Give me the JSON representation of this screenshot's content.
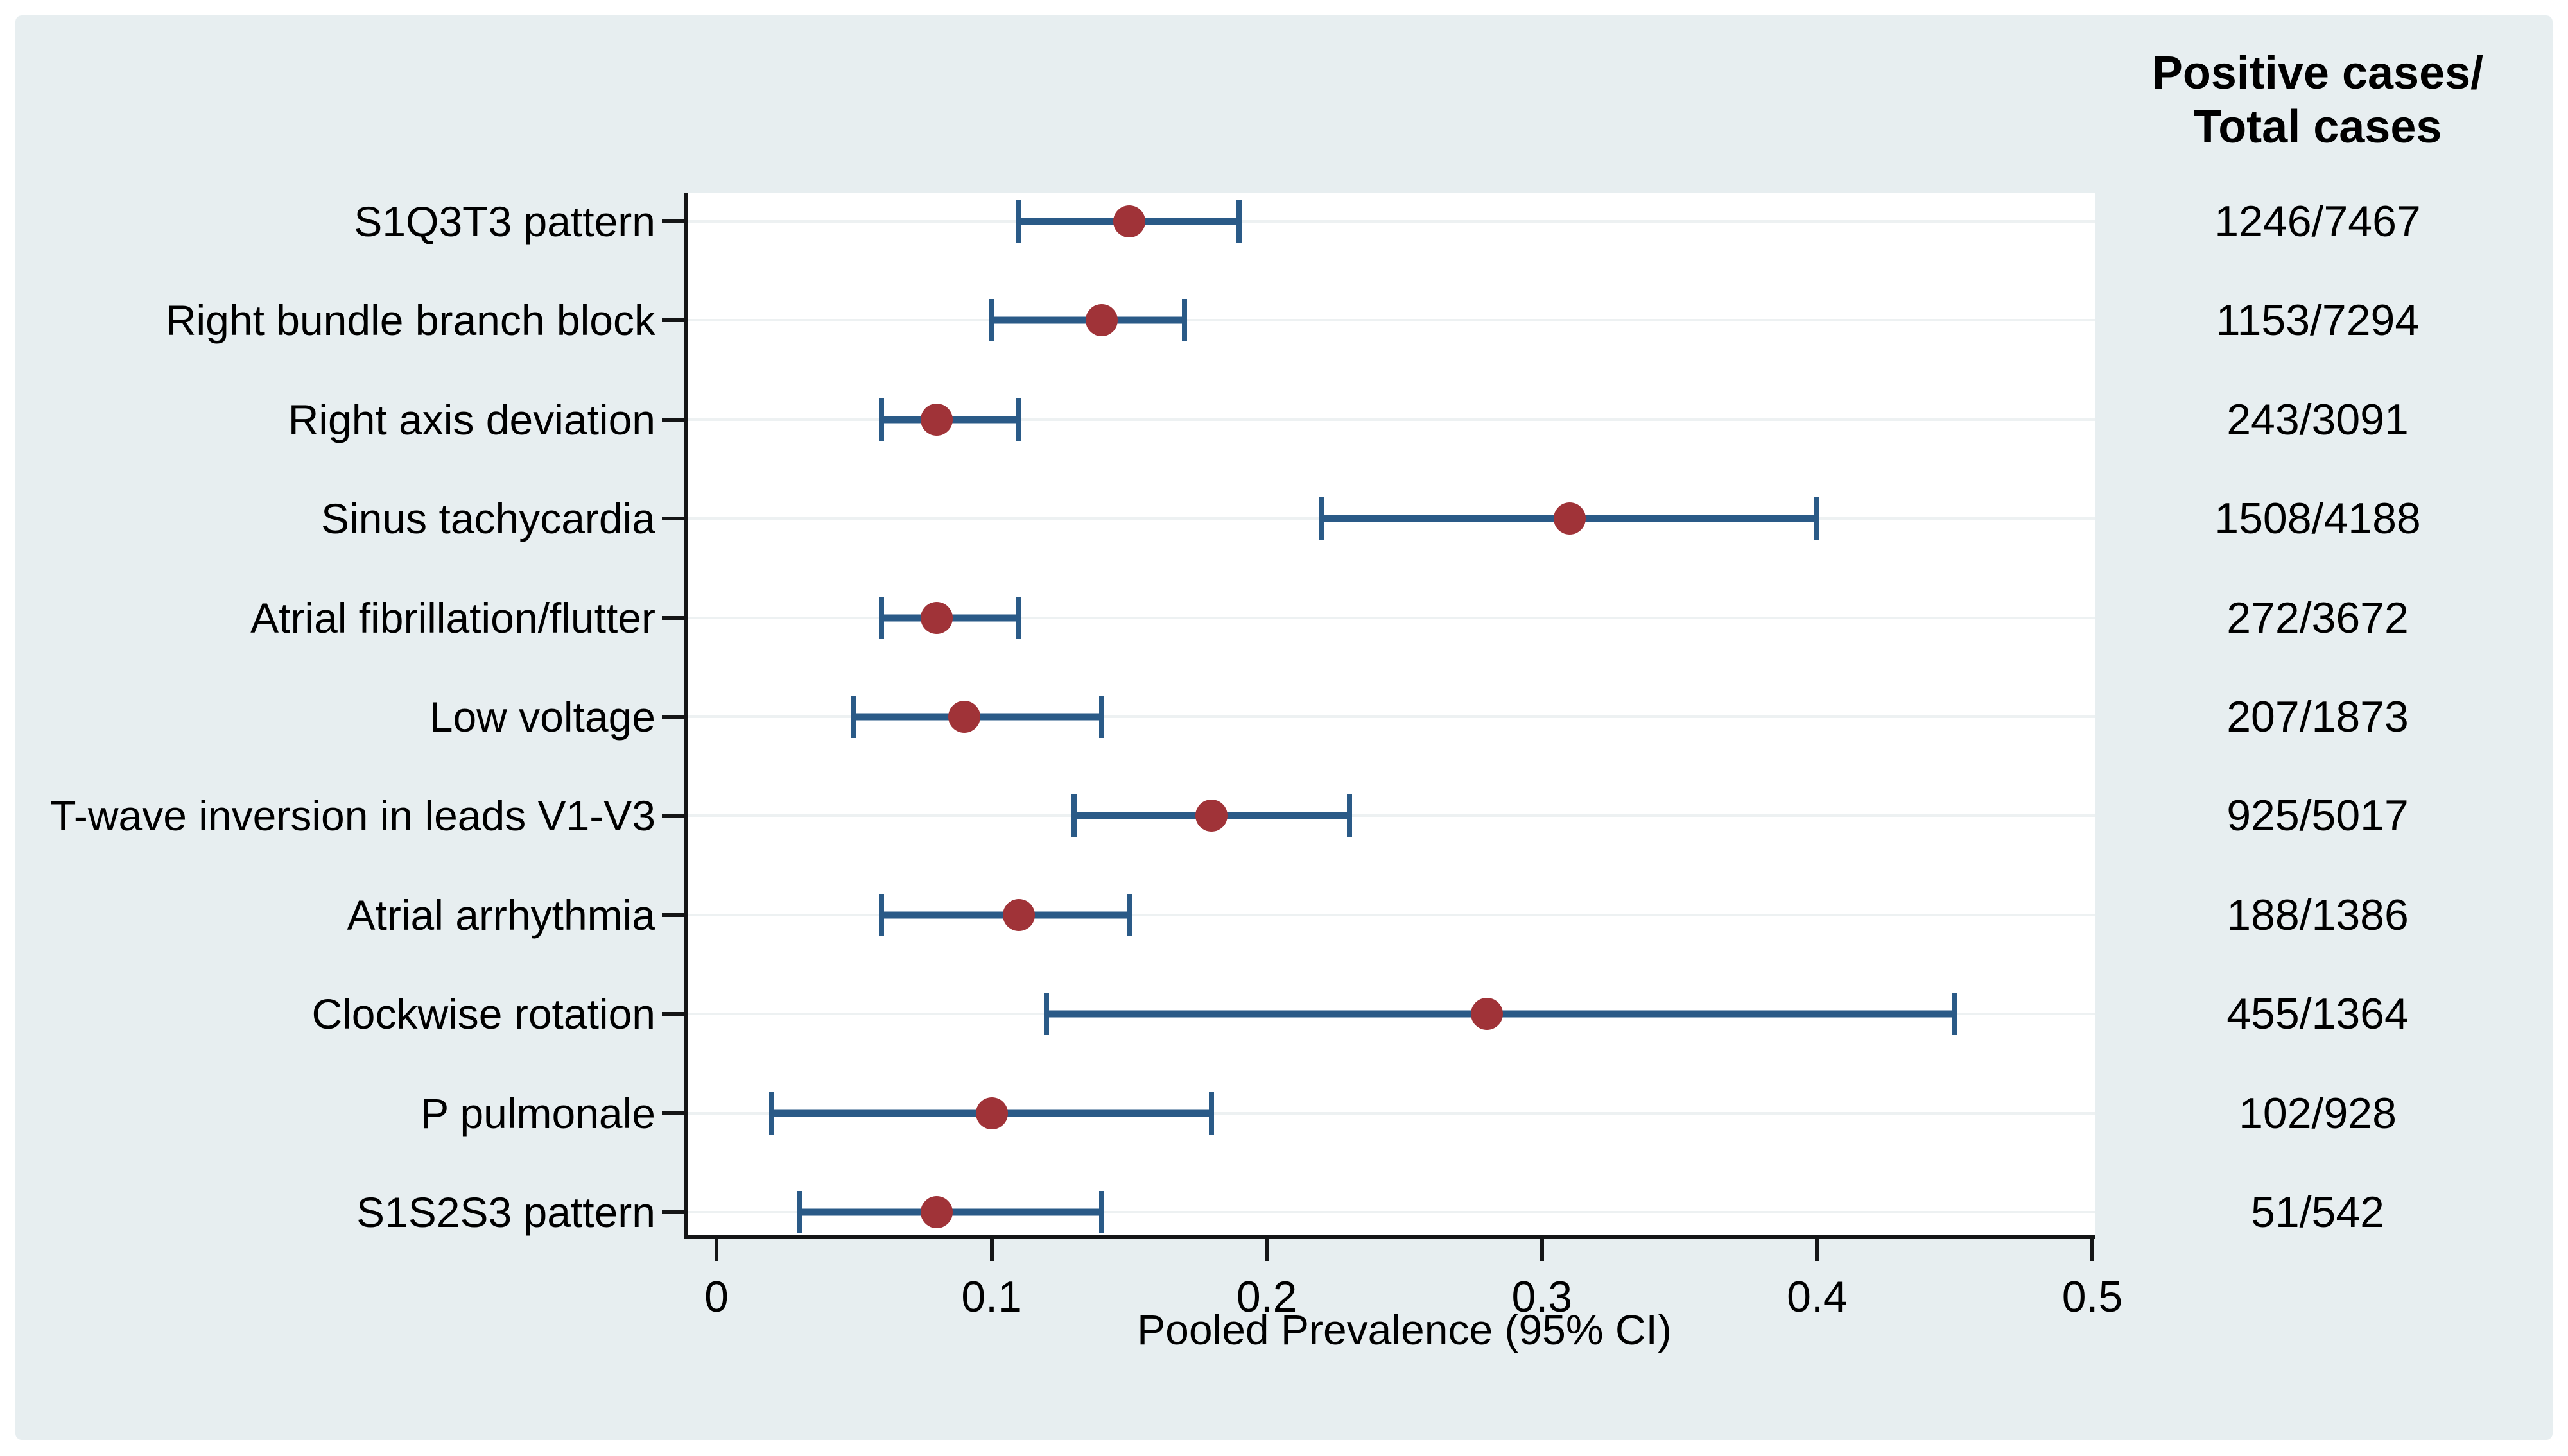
{
  "figure": {
    "right_column_header_line1": "Positive cases/",
    "right_column_header_line2": "Total cases",
    "x_axis_title": "Pooled Prevalence (95% CI)"
  },
  "chart_data": {
    "type": "scatter",
    "subtype": "forest-plot",
    "title": "",
    "xlabel": "Pooled Prevalence (95% CI)",
    "ylabel": "",
    "xlim": [
      0,
      0.5
    ],
    "x_tick_labels": [
      "0",
      "0.1",
      "0.2",
      "0.3",
      "0.4",
      "0.5"
    ],
    "x_tick_values": [
      0,
      0.1,
      0.2,
      0.3,
      0.4,
      0.5
    ],
    "grid": "faint horizontal guide at each category row",
    "legend_position": "none",
    "right_column_header": "Positive cases/ Total cases",
    "colors": {
      "marker": "#A03338",
      "ci_line": "#2A5A87",
      "figure_background": "#E7EEF0",
      "plot_background": "#FFFFFF",
      "grid_line": "#EDF1F2",
      "axis_line": "#141516",
      "text": "#000000"
    },
    "rows": [
      {
        "label": "S1Q3T3 pattern",
        "estimate": 0.15,
        "ci_low": 0.11,
        "ci_high": 0.19,
        "positive_total": "1246/7467"
      },
      {
        "label": "Right bundle branch block",
        "estimate": 0.14,
        "ci_low": 0.1,
        "ci_high": 0.17,
        "positive_total": "1153/7294"
      },
      {
        "label": "Right axis deviation",
        "estimate": 0.08,
        "ci_low": 0.06,
        "ci_high": 0.11,
        "positive_total": "243/3091"
      },
      {
        "label": "Sinus tachycardia",
        "estimate": 0.31,
        "ci_low": 0.22,
        "ci_high": 0.4,
        "positive_total": "1508/4188"
      },
      {
        "label": "Atrial fibrillation/flutter",
        "estimate": 0.08,
        "ci_low": 0.06,
        "ci_high": 0.11,
        "positive_total": "272/3672"
      },
      {
        "label": "Low voltage",
        "estimate": 0.09,
        "ci_low": 0.05,
        "ci_high": 0.14,
        "positive_total": "207/1873"
      },
      {
        "label": "T-wave inversion in leads V1-V3",
        "estimate": 0.18,
        "ci_low": 0.13,
        "ci_high": 0.23,
        "positive_total": "925/5017"
      },
      {
        "label": "Atrial arrhythmia",
        "estimate": 0.11,
        "ci_low": 0.06,
        "ci_high": 0.15,
        "positive_total": "188/1386"
      },
      {
        "label": "Clockwise rotation",
        "estimate": 0.28,
        "ci_low": 0.12,
        "ci_high": 0.45,
        "positive_total": "455/1364"
      },
      {
        "label": "P pulmonale",
        "estimate": 0.1,
        "ci_low": 0.02,
        "ci_high": 0.18,
        "positive_total": "102/928"
      },
      {
        "label": "S1S2S3 pattern",
        "estimate": 0.08,
        "ci_low": 0.03,
        "ci_high": 0.14,
        "positive_total": "51/542"
      }
    ]
  }
}
